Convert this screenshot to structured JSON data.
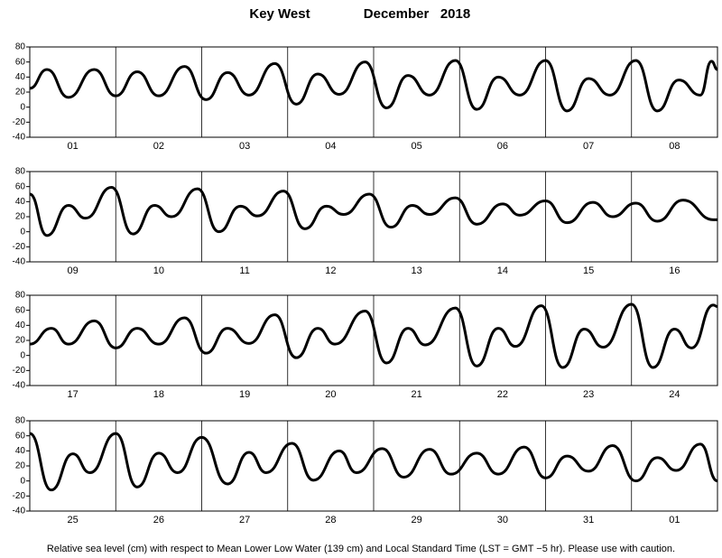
{
  "header": {
    "location": "Key West",
    "period": "December   2018"
  },
  "footer": "Relative sea level (cm) with respect to Mean Lower Low Water (139 cm) and Local Standard Time (LST = GMT −5 hr). Please use with caution.",
  "chart_data": [
    {
      "type": "line",
      "categories": [
        "01",
        "02",
        "03",
        "04",
        "05",
        "06",
        "07",
        "08"
      ],
      "xlim": [
        0,
        8
      ],
      "ylim": [
        -40,
        80
      ],
      "yticks": [
        -40,
        -20,
        0,
        20,
        40,
        60,
        80
      ],
      "x": [
        0,
        0.2,
        0.45,
        0.75,
        1.0,
        1.25,
        1.5,
        1.8,
        2.05,
        2.3,
        2.55,
        2.85,
        3.1,
        3.35,
        3.6,
        3.9,
        4.15,
        4.4,
        4.65,
        4.95,
        5.2,
        5.45,
        5.7,
        6.0,
        6.25,
        6.5,
        6.75,
        7.05,
        7.3,
        7.55,
        7.8,
        7.93,
        8.0
      ],
      "series": [
        {
          "color": "#000000",
          "values": [
            25,
            50,
            13,
            50,
            15,
            47,
            15,
            54,
            10,
            46,
            16,
            58,
            4,
            44,
            17,
            60,
            -1,
            42,
            16,
            62,
            -3,
            40,
            16,
            62,
            -5,
            38,
            16,
            62,
            -5,
            36,
            16,
            61,
            50
          ]
        }
      ]
    },
    {
      "type": "line",
      "categories": [
        "09",
        "10",
        "11",
        "12",
        "13",
        "14",
        "15",
        "16"
      ],
      "xlim": [
        0,
        8
      ],
      "ylim": [
        -40,
        80
      ],
      "yticks": [
        -40,
        -20,
        0,
        20,
        40,
        60,
        80
      ],
      "x": [
        0,
        0.2,
        0.45,
        0.65,
        0.95,
        1.2,
        1.45,
        1.65,
        1.95,
        2.2,
        2.45,
        2.65,
        2.95,
        3.2,
        3.45,
        3.65,
        3.95,
        4.2,
        4.45,
        4.65,
        4.95,
        5.2,
        5.5,
        5.7,
        6.0,
        6.25,
        6.55,
        6.78,
        7.05,
        7.3,
        7.6,
        7.95,
        8.0
      ],
      "series": [
        {
          "color": "#000000",
          "values": [
            50,
            -5,
            35,
            18,
            59,
            -3,
            35,
            20,
            57,
            0,
            34,
            21,
            54,
            4,
            34,
            23,
            50,
            6,
            35,
            23,
            45,
            10,
            37,
            22,
            41,
            12,
            39,
            20,
            38,
            14,
            42,
            16,
            16
          ]
        }
      ]
    },
    {
      "type": "line",
      "categories": [
        "17",
        "18",
        "19",
        "20",
        "21",
        "22",
        "23",
        "24"
      ],
      "xlim": [
        0,
        8
      ],
      "ylim": [
        -40,
        80
      ],
      "yticks": [
        -40,
        -20,
        0,
        20,
        40,
        60,
        80
      ],
      "x": [
        0,
        0.25,
        0.45,
        0.75,
        1.0,
        1.25,
        1.5,
        1.8,
        2.05,
        2.3,
        2.55,
        2.85,
        3.1,
        3.35,
        3.55,
        3.9,
        4.15,
        4.4,
        4.6,
        4.95,
        5.2,
        5.45,
        5.65,
        5.95,
        6.2,
        6.45,
        6.67,
        7.0,
        7.25,
        7.5,
        7.7,
        7.95,
        8.0
      ],
      "series": [
        {
          "color": "#000000",
          "values": [
            15,
            36,
            15,
            46,
            10,
            36,
            15,
            50,
            3,
            36,
            16,
            54,
            -3,
            36,
            15,
            59,
            -10,
            36,
            14,
            63,
            -14,
            36,
            12,
            66,
            -16,
            35,
            11,
            68,
            -16,
            35,
            10,
            67,
            65
          ]
        }
      ]
    },
    {
      "type": "line",
      "categories": [
        "25",
        "26",
        "27",
        "28",
        "29",
        "30",
        "31",
        "01"
      ],
      "xlim": [
        0,
        8
      ],
      "ylim": [
        -40,
        80
      ],
      "yticks": [
        -40,
        -20,
        0,
        20,
        40,
        60,
        80
      ],
      "x": [
        0,
        0.25,
        0.5,
        0.7,
        1.0,
        1.25,
        1.5,
        1.72,
        2.0,
        2.3,
        2.55,
        2.75,
        3.05,
        3.3,
        3.6,
        3.8,
        4.1,
        4.35,
        4.65,
        4.9,
        5.2,
        5.45,
        5.75,
        6.0,
        6.25,
        6.5,
        6.78,
        7.05,
        7.3,
        7.52,
        7.8,
        8.0
      ],
      "series": [
        {
          "color": "#000000",
          "values": [
            63,
            -12,
            36,
            11,
            63,
            -8,
            37,
            11,
            58,
            -4,
            38,
            11,
            50,
            1,
            40,
            11,
            43,
            5,
            42,
            9,
            37,
            9,
            45,
            4,
            33,
            13,
            47,
            0,
            31,
            14,
            49,
            0
          ]
        }
      ]
    }
  ]
}
